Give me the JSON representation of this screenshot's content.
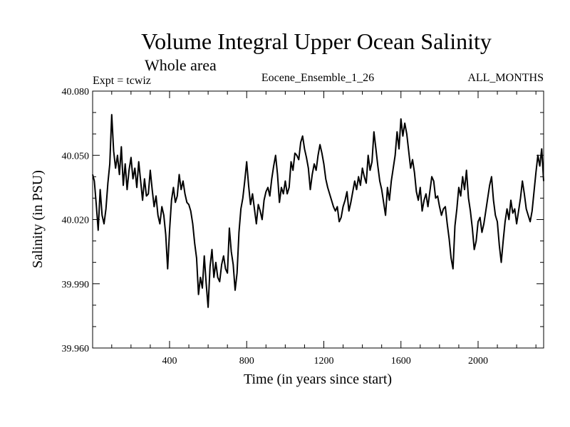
{
  "chart_data": {
    "type": "line",
    "title": "Volume Integral Upper Ocean Salinity",
    "subtitle": "Whole area",
    "left_label": "Expt = tcwiz",
    "center_label": "Eocene_Ensemble_1_26",
    "right_label": "ALL_MONTHS",
    "xlabel": "Time (in years since start)",
    "ylabel": "Salinity (in PSU)",
    "xlim": [
      1,
      2340
    ],
    "ylim": [
      39.96,
      40.08
    ],
    "xticks": [
      400,
      800,
      1200,
      1600,
      2000
    ],
    "xtick_labels": [
      "400",
      "800",
      "1200",
      "1600",
      "2000"
    ],
    "yticks": [
      39.96,
      39.99,
      40.02,
      40.05,
      40.08
    ],
    "ytick_labels": [
      "39.960",
      "39.990",
      "40.020",
      "40.050",
      "40.080"
    ],
    "grid": false,
    "legend": "none",
    "line_color": "#000000",
    "series": [
      {
        "x": [
          0,
          10,
          20,
          30,
          40,
          50,
          60,
          70,
          80,
          90,
          100,
          110,
          120,
          130,
          140,
          150,
          160,
          170,
          180,
          190,
          200,
          210,
          220,
          230,
          240,
          250,
          260,
          270,
          280,
          290,
          300,
          310,
          320,
          330,
          340,
          350,
          360,
          370,
          380,
          390,
          400,
          410,
          420,
          430,
          440,
          450,
          460,
          470,
          480,
          490,
          500,
          510,
          520,
          530,
          540,
          550,
          560,
          570,
          580,
          590,
          600,
          610,
          620,
          630,
          640,
          650,
          660,
          670,
          680,
          690,
          700,
          710,
          720,
          730,
          740,
          750,
          760,
          770,
          780,
          790,
          800,
          810,
          820,
          830,
          840,
          850,
          860,
          870,
          880,
          890,
          900,
          910,
          920,
          930,
          940,
          950,
          960,
          970,
          980,
          990,
          1000,
          1010,
          1020,
          1030,
          1040,
          1050,
          1060,
          1070,
          1080,
          1090,
          1100,
          1110,
          1120,
          1130,
          1140,
          1150,
          1160,
          1170,
          1180,
          1190,
          1200,
          1210,
          1220,
          1230,
          1240,
          1250,
          1260,
          1270,
          1280,
          1290,
          1300,
          1310,
          1320,
          1330,
          1340,
          1350,
          1360,
          1370,
          1380,
          1390,
          1400,
          1410,
          1420,
          1430,
          1440,
          1450,
          1460,
          1470,
          1480,
          1490,
          1500,
          1510,
          1520,
          1530,
          1540,
          1550,
          1560,
          1570,
          1580,
          1590,
          1600,
          1610,
          1620,
          1630,
          1640,
          1650,
          1660,
          1670,
          1680,
          1690,
          1700,
          1710,
          1720,
          1730,
          1740,
          1750,
          1760,
          1770,
          1780,
          1790,
          1800,
          1810,
          1820,
          1830,
          1840,
          1850,
          1860,
          1870,
          1880,
          1890,
          1900,
          1910,
          1920,
          1930,
          1940,
          1950,
          1960,
          1970,
          1980,
          1990,
          2000,
          2010,
          2020,
          2030,
          2040,
          2050,
          2060,
          2070,
          2080,
          2090,
          2100,
          2110,
          2120,
          2130,
          2140,
          2150,
          2160,
          2170,
          2180,
          2190,
          2200,
          2210,
          2220,
          2230,
          2240,
          2250,
          2260,
          2270,
          2280,
          2290,
          2300,
          2310,
          2320,
          2330,
          2340
        ],
        "values": [
          40.041,
          40.038,
          40.027,
          40.015,
          40.034,
          40.022,
          40.018,
          40.025,
          40.037,
          40.046,
          40.069,
          40.052,
          40.044,
          40.05,
          40.041,
          40.054,
          40.036,
          40.046,
          40.034,
          40.043,
          40.049,
          40.039,
          40.044,
          40.035,
          40.047,
          40.038,
          40.029,
          40.039,
          40.031,
          40.032,
          40.043,
          40.034,
          40.026,
          40.031,
          40.022,
          40.018,
          40.026,
          40.022,
          40.013,
          39.997,
          40.015,
          40.029,
          40.035,
          40.028,
          40.031,
          40.041,
          40.034,
          40.038,
          40.032,
          40.028,
          40.027,
          40.024,
          40.018,
          40.009,
          40.002,
          39.985,
          39.993,
          39.988,
          40.003,
          39.99,
          39.979,
          39.998,
          40.006,
          39.993,
          40.0,
          39.993,
          39.991,
          39.999,
          40.003,
          39.997,
          39.995,
          40.016,
          40.005,
          39.999,
          39.987,
          39.995,
          40.014,
          40.025,
          40.03,
          40.038,
          40.047,
          40.036,
          40.027,
          40.032,
          40.025,
          40.018,
          40.027,
          40.024,
          40.02,
          40.029,
          40.033,
          40.035,
          40.031,
          40.039,
          40.045,
          40.05,
          40.041,
          40.028,
          40.035,
          40.032,
          40.038,
          40.032,
          40.035,
          40.047,
          40.043,
          40.051,
          40.05,
          40.048,
          40.056,
          40.059,
          40.053,
          40.049,
          40.044,
          40.034,
          40.041,
          40.046,
          40.043,
          40.05,
          40.055,
          40.051,
          40.046,
          40.039,
          40.035,
          40.032,
          40.029,
          40.026,
          40.024,
          40.026,
          40.019,
          40.021,
          40.026,
          40.029,
          40.033,
          40.024,
          40.028,
          40.033,
          40.038,
          40.034,
          40.04,
          40.036,
          40.044,
          40.04,
          40.037,
          40.05,
          40.043,
          40.047,
          40.061,
          40.053,
          40.045,
          40.038,
          40.034,
          40.028,
          40.022,
          40.035,
          40.029,
          40.038,
          40.044,
          40.05,
          40.061,
          40.053,
          40.067,
          40.059,
          40.065,
          40.06,
          40.052,
          40.044,
          40.048,
          40.042,
          40.033,
          40.029,
          40.035,
          40.024,
          40.029,
          40.032,
          40.026,
          40.033,
          40.04,
          40.038,
          40.03,
          40.031,
          40.026,
          40.022,
          40.025,
          40.026,
          40.018,
          40.011,
          40.002,
          39.997,
          40.017,
          40.025,
          40.035,
          40.031,
          40.04,
          40.034,
          40.043,
          40.03,
          40.024,
          40.016,
          40.006,
          40.01,
          40.019,
          40.021,
          40.014,
          40.018,
          40.024,
          40.03,
          40.036,
          40.04,
          40.029,
          40.022,
          40.019,
          40.008,
          40.0,
          40.01,
          40.019,
          40.025,
          40.02,
          40.029,
          40.023,
          40.025,
          40.018,
          40.024,
          40.03,
          40.038,
          40.032,
          40.025,
          40.022,
          40.019,
          40.024,
          40.033,
          40.042,
          40.05,
          40.045,
          40.053,
          40.038
        ]
      }
    ]
  }
}
